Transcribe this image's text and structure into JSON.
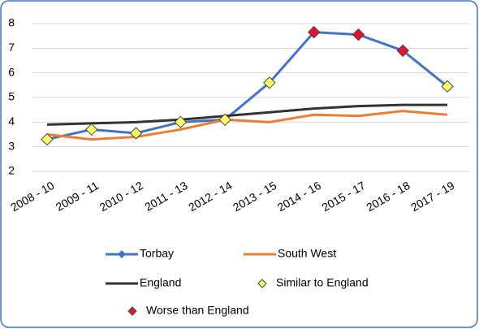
{
  "chart_data": {
    "type": "line",
    "categories": [
      "2008 - 10",
      "2009 - 11",
      "2010 - 12",
      "2011 - 13",
      "2012 - 14",
      "2013 - 15",
      "2014 - 16",
      "2015 - 17",
      "2016 - 18",
      "2017 - 19"
    ],
    "series": [
      {
        "name": "Torbay",
        "color": "#4472c4",
        "values": [
          3.3,
          3.7,
          3.55,
          4.0,
          4.1,
          5.6,
          7.65,
          7.55,
          6.9,
          5.45
        ]
      },
      {
        "name": "South West",
        "color": "#ed7d31",
        "values": [
          3.5,
          3.3,
          3.4,
          3.7,
          4.1,
          4.0,
          4.3,
          4.25,
          4.45,
          4.3
        ]
      },
      {
        "name": "England",
        "color": "#333333",
        "values": [
          3.9,
          3.95,
          4.0,
          4.1,
          4.25,
          4.4,
          4.55,
          4.65,
          4.7,
          4.7
        ]
      },
      {
        "name": "Similar to England",
        "color": "#ffff66",
        "marker": "diamond",
        "values": [
          3.3,
          3.7,
          3.55,
          4.0,
          4.1,
          5.6,
          null,
          null,
          null,
          5.45
        ]
      },
      {
        "name": "Worse than England",
        "color": "#e8112d",
        "marker": "diamond",
        "values": [
          null,
          null,
          null,
          null,
          null,
          null,
          7.65,
          7.55,
          6.9,
          null
        ]
      }
    ],
    "ylim": [
      2,
      8
    ],
    "yticks": [
      2,
      3,
      4,
      5,
      6,
      7,
      8
    ],
    "grid": true
  }
}
